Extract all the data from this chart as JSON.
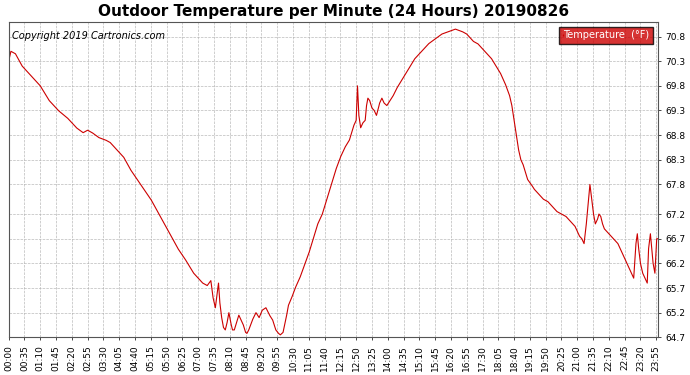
{
  "title": "Outdoor Temperature per Minute (24 Hours) 20190826",
  "copyright": "Copyright 2019 Cartronics.com",
  "legend_label": "Temperature  (°F)",
  "line_color": "#cc0000",
  "background_color": "#ffffff",
  "plot_bg_color": "#ffffff",
  "grid_color": "#aaaaaa",
  "legend_bg": "#cc0000",
  "legend_fg": "#ffffff",
  "ylim": [
    64.7,
    71.1
  ],
  "yticks": [
    64.7,
    65.2,
    65.7,
    66.2,
    66.7,
    67.2,
    67.8,
    68.3,
    68.8,
    69.3,
    69.8,
    70.3,
    70.8
  ],
  "xlabel_interval_minutes": 35,
  "total_minutes": 1440,
  "title_fontsize": 11,
  "copyright_fontsize": 7,
  "axis_fontsize": 6.5,
  "figwidth": 6.9,
  "figheight": 3.75,
  "dpi": 100
}
